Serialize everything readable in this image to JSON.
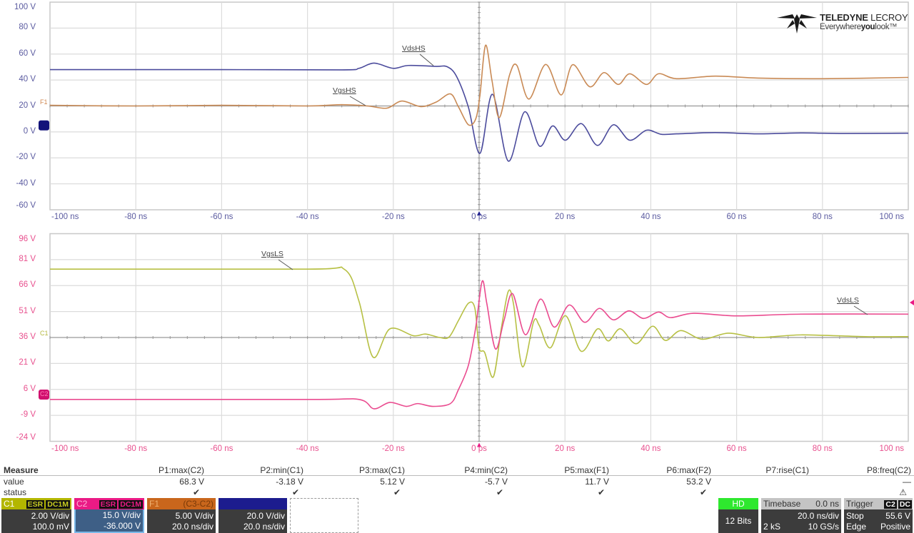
{
  "logo": {
    "brand": "TELEDYNE",
    "brand2": "LECROY",
    "tagline_pre": "Everywhere",
    "tagline_bold": "you",
    "tagline_post": "look"
  },
  "chart_data": [
    {
      "type": "line",
      "xlim": [
        -100,
        100
      ],
      "ylim": [
        -60,
        100
      ],
      "grid": true,
      "x_tick_values": [
        -100,
        -80,
        -60,
        -40,
        -20,
        0,
        20,
        40,
        60,
        80,
        100
      ],
      "x_tick_labels": [
        "-100 ns",
        "-80 ns",
        "-60 ns",
        "-40 ns",
        "-20 ns",
        "0 ps",
        "20 ns",
        "40 ns",
        "60 ns",
        "80 ns",
        "100 ns"
      ],
      "y_tick_values": [
        100,
        80,
        60,
        40,
        20,
        0,
        -20,
        -40,
        -60
      ],
      "y_tick_labels": [
        "100 V",
        "80 V",
        "60 V",
        "40 V",
        "20 V",
        "0 V",
        "-20 V",
        "-40 V",
        "-60 V"
      ],
      "axis_color": "#5b5ba0",
      "markers": [
        {
          "label": "F1",
          "color": "#d08850",
          "value": 20
        },
        {
          "label": "",
          "color": "#12127a",
          "value": 5
        }
      ],
      "series": [
        {
          "name": "VdsHS",
          "color": "#4b4b9c",
          "points": [
            [
              -100,
              48
            ],
            [
              -60,
              48
            ],
            [
              -32,
              47.8
            ],
            [
              -28,
              49
            ],
            [
              -24.5,
              53
            ],
            [
              -20,
              49
            ],
            [
              -16.5,
              51.2
            ],
            [
              -10,
              50.5
            ],
            [
              -7.5,
              50.3
            ],
            [
              -5.3,
              43
            ],
            [
              -2.5,
              19
            ],
            [
              0.2,
              -16.5
            ],
            [
              3.1,
              29
            ],
            [
              6.8,
              -22.5
            ],
            [
              10.6,
              15.5
            ],
            [
              14.1,
              -11
            ],
            [
              17.1,
              4.6
            ],
            [
              20.1,
              -6.4
            ],
            [
              23.8,
              6.4
            ],
            [
              27.6,
              -10.4
            ],
            [
              31.3,
              5.5
            ],
            [
              35.1,
              -6.4
            ],
            [
              39,
              1.3
            ],
            [
              42.4,
              -1.8
            ],
            [
              46,
              -1.5
            ],
            [
              55,
              -0.5
            ],
            [
              65,
              -1.5
            ],
            [
              75,
              -0.8
            ],
            [
              85,
              -1.2
            ],
            [
              100,
              -1
            ]
          ]
        },
        {
          "name": "VgsHS",
          "color": "#c98a55",
          "points": [
            [
              -100,
              20.5
            ],
            [
              -80,
              20
            ],
            [
              -60,
              20.5
            ],
            [
              -40,
              20
            ],
            [
              -32,
              21
            ],
            [
              -26,
              20
            ],
            [
              -21.5,
              18.3
            ],
            [
              -18,
              23.8
            ],
            [
              -13.6,
              19.5
            ],
            [
              -10,
              23
            ],
            [
              -6.7,
              29.3
            ],
            [
              -4.8,
              19.2
            ],
            [
              -2.5,
              5.5
            ],
            [
              -0.8,
              10
            ],
            [
              0.2,
              28.5
            ],
            [
              1.5,
              66.8
            ],
            [
              3,
              39.5
            ],
            [
              4.7,
              11
            ],
            [
              7.1,
              44
            ],
            [
              8.8,
              51.2
            ],
            [
              11.6,
              25.3
            ],
            [
              15.5,
              52
            ],
            [
              19.1,
              28.5
            ],
            [
              21.8,
              51.8
            ],
            [
              25.8,
              34.8
            ],
            [
              29.1,
              45.7
            ],
            [
              32.4,
              36.6
            ],
            [
              35.1,
              44.8
            ],
            [
              39,
              36.6
            ],
            [
              41.8,
              44.8
            ],
            [
              46,
              41
            ],
            [
              55,
              43
            ],
            [
              65,
              41.5
            ],
            [
              80,
              41
            ],
            [
              100,
              42
            ]
          ]
        }
      ]
    },
    {
      "type": "line",
      "xlim": [
        -100,
        100
      ],
      "ylim": [
        -24,
        96
      ],
      "grid": true,
      "x_tick_values": [
        -100,
        -80,
        -60,
        -40,
        -20,
        0,
        20,
        40,
        60,
        80,
        100
      ],
      "x_tick_labels": [
        "-100 ns",
        "-80 ns",
        "-60 ns",
        "-40 ns",
        "-20 ns",
        "0 ps",
        "20 ns",
        "40 ns",
        "60 ns",
        "80 ns",
        "100 ns"
      ],
      "y_tick_values": [
        96,
        81,
        66,
        51,
        36,
        21,
        6,
        -9,
        -24
      ],
      "y_tick_labels": [
        "96 V",
        "81 V",
        "66 V",
        "51 V",
        "36 V",
        "21 V",
        "6 V",
        "-9 V",
        "-24 V"
      ],
      "axis_color": "#e8508e",
      "markers": [
        {
          "label": "C1",
          "color": "#b5b840",
          "value": 36
        },
        {
          "label": "C2",
          "color": "#d0106e",
          "value": 3
        }
      ],
      "series": [
        {
          "name": "VgsLS",
          "color": "#b7c044",
          "points": [
            [
              -100,
              75.5
            ],
            [
              -40,
              75.5
            ],
            [
              -31.4,
              75.4
            ],
            [
              -28,
              57
            ],
            [
              -24.7,
              24.6
            ],
            [
              -20.8,
              41
            ],
            [
              -15.3,
              37
            ],
            [
              -12.5,
              38
            ],
            [
              -9.2,
              36
            ],
            [
              -7,
              36.3
            ],
            [
              -4.8,
              45.9
            ],
            [
              -2.5,
              55.8
            ],
            [
              -1,
              53
            ],
            [
              0,
              30
            ],
            [
              1.3,
              27.3
            ],
            [
              3.3,
              13.2
            ],
            [
              5.2,
              41.8
            ],
            [
              6.8,
              62.7
            ],
            [
              8,
              55.5
            ],
            [
              10.1,
              19.1
            ],
            [
              12.7,
              45.2
            ],
            [
              14,
              43
            ],
            [
              16.6,
              30
            ],
            [
              20.1,
              48.6
            ],
            [
              23.8,
              28
            ],
            [
              27.6,
              41
            ],
            [
              30.1,
              34
            ],
            [
              32.9,
              41
            ],
            [
              36.6,
              32.4
            ],
            [
              40.4,
              42.5
            ],
            [
              43.4,
              34.3
            ],
            [
              47,
              40
            ],
            [
              52,
              35
            ],
            [
              58,
              38.5
            ],
            [
              65,
              36
            ],
            [
              75,
              37.5
            ],
            [
              90,
              36.5
            ],
            [
              100,
              36.5
            ]
          ]
        },
        {
          "name": "VdsLS",
          "color": "#ea4b8f",
          "points": [
            [
              -100,
              0.2
            ],
            [
              -40,
              0.2
            ],
            [
              -28,
              0.2
            ],
            [
              -24.5,
              -5.2
            ],
            [
              -20.8,
              -1.5
            ],
            [
              -17,
              -3.8
            ],
            [
              -14.3,
              -2.2
            ],
            [
              -10.8,
              -3.8
            ],
            [
              -6.7,
              -2.2
            ],
            [
              -4.8,
              6
            ],
            [
              -2.5,
              20
            ],
            [
              -0.8,
              41.8
            ],
            [
              0.7,
              68.5
            ],
            [
              1.8,
              55.5
            ],
            [
              3.8,
              29.4
            ],
            [
              5.8,
              45.9
            ],
            [
              7.8,
              61.3
            ],
            [
              10.8,
              37.6
            ],
            [
              14.3,
              58.2
            ],
            [
              17.5,
              42
            ],
            [
              21,
              54.8
            ],
            [
              24.6,
              44.8
            ],
            [
              28,
              52.8
            ],
            [
              31.3,
              46.2
            ],
            [
              34.9,
              51.4
            ],
            [
              38.3,
              47
            ],
            [
              41.8,
              50.7
            ],
            [
              44.6,
              47.5
            ],
            [
              50,
              50
            ],
            [
              60,
              48.5
            ],
            [
              75,
              49.5
            ],
            [
              100,
              49.5
            ]
          ]
        }
      ]
    }
  ],
  "measure": {
    "title": "Measure",
    "value_label": "value",
    "status_label": "status",
    "columns": [
      {
        "name": "P1:max(C2)",
        "value": "68.3 V",
        "status": "✔"
      },
      {
        "name": "P2:min(C1)",
        "value": "-3.18 V",
        "status": "✔"
      },
      {
        "name": "P3:max(C1)",
        "value": "5.12 V",
        "status": "✔"
      },
      {
        "name": "P4:min(C2)",
        "value": "-5.7 V",
        "status": "✔"
      },
      {
        "name": "P5:max(F1)",
        "value": "11.7 V",
        "status": "✔"
      },
      {
        "name": "P6:max(F2)",
        "value": "53.2 V",
        "status": "✔"
      },
      {
        "name": "P7:rise(C1)",
        "value": "",
        "status": ""
      },
      {
        "name": "P8:freq(C2)",
        "value": "—",
        "status": "⚠"
      }
    ]
  },
  "channels": {
    "c1": {
      "label": "C1",
      "badge1": "ESR",
      "badge2": "DC1M",
      "scale": "2.00 V/div",
      "offset": "100.0 mV",
      "color": "#b3b600"
    },
    "c2": {
      "label": "C2",
      "badge1": "ESR",
      "badge2": "DC1M",
      "scale": "15.0 V/div",
      "offset": "-36.000 V",
      "color": "#ea1a85"
    },
    "f1": {
      "label": "F1",
      "source": "(C3-C2)",
      "scale": "5.00 V/div",
      "timescale": "20.0 ns/div",
      "color": "#c9661c"
    },
    "f2": {
      "scale": "20.0 V/div",
      "timescale": "20.0 ns/div",
      "color": "#1c1c8e"
    }
  },
  "acquisition": {
    "hd": {
      "label": "HD",
      "bits": "12 Bits"
    },
    "timebase": {
      "label": "Timebase",
      "delay": "0.0 ns",
      "scale": "20.0 ns/div",
      "samples": "2 kS",
      "rate": "10 GS/s"
    },
    "trigger": {
      "label": "Trigger",
      "badge1": "C2",
      "badge2": "DC",
      "mode": "Stop",
      "level": "55.6 V",
      "type": "Edge",
      "slope": "Positive"
    }
  }
}
